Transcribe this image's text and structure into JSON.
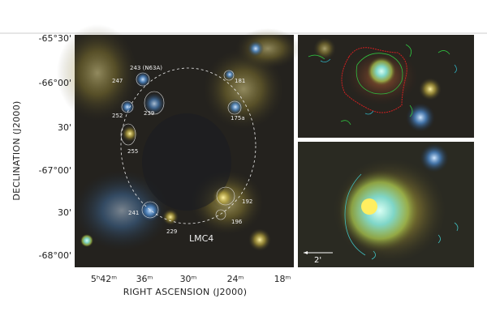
{
  "figure": {
    "y_axis": {
      "label": "DECLINATION (J2000)",
      "ticks": [
        "-65°30'",
        "-66°00'",
        "30'",
        "-67°00'",
        "30'",
        "-68°00'"
      ]
    },
    "x_axis": {
      "label": "RIGHT ASCENSION (J2000)",
      "ticks": [
        "5ʰ42ᵐ",
        "36ᵐ",
        "30ᵐ",
        "24ᵐ",
        "18ᵐ"
      ]
    },
    "annotations": [
      "243 (N63A)",
      "247",
      "181",
      "252",
      "239",
      "175a",
      "255",
      "192",
      "241",
      "196",
      "229"
    ],
    "region_label": "LMC4",
    "scale_bar": "2'"
  }
}
